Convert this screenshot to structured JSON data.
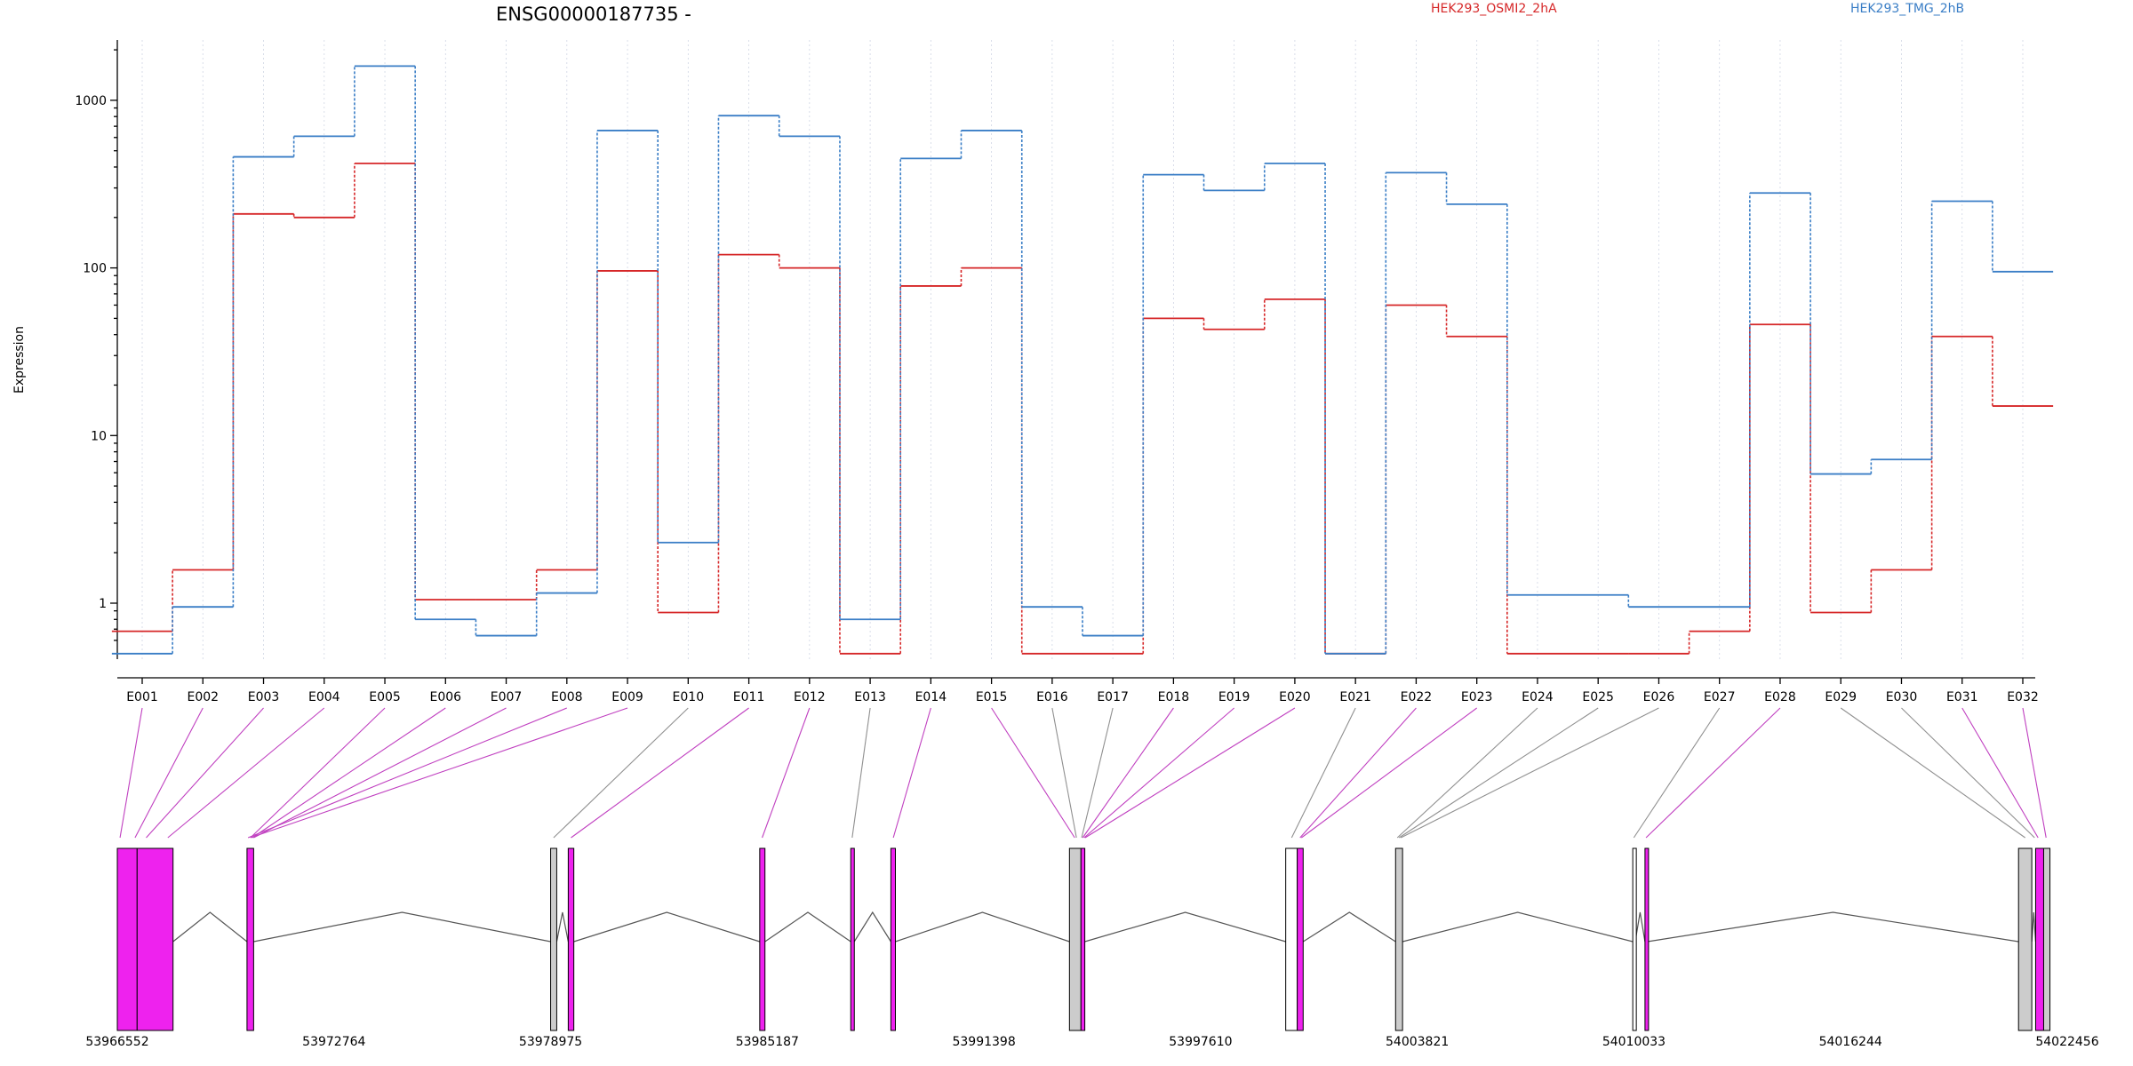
{
  "chart_data": {
    "type": "line",
    "title": "ENSG00000187735 -",
    "ylabel": "Expression",
    "yscale": "log",
    "ylim": [
      0.48,
      2200
    ],
    "yticks": [
      1,
      10,
      100,
      1000
    ],
    "ytick_labels": [
      "1",
      "10",
      "100",
      "1000"
    ],
    "categories": [
      "E001",
      "E002",
      "E003",
      "E004",
      "E005",
      "E006",
      "E007",
      "E008",
      "E009",
      "E010",
      "E011",
      "E012",
      "E013",
      "E014",
      "E015",
      "E016",
      "E017",
      "E018",
      "E019",
      "E020",
      "E021",
      "E022",
      "E023",
      "E024",
      "E025",
      "E026",
      "E027",
      "E028",
      "E029",
      "E030",
      "E031",
      "E032"
    ],
    "series": [
      {
        "name": "HEK293_OSMI2_2hA",
        "color": "#d62728",
        "values": [
          0.68,
          1.58,
          210,
          200,
          420,
          1.05,
          1.05,
          1.58,
          96,
          0.88,
          120,
          100,
          0.5,
          78,
          100,
          0.5,
          0.5,
          50,
          43,
          65,
          0.5,
          60,
          39,
          0.5,
          0.5,
          0.5,
          0.68,
          46,
          0.88,
          1.58,
          39,
          15
        ]
      },
      {
        "name": "HEK293_TMG_2hB",
        "color": "#3a7ec6",
        "values": [
          0.5,
          0.95,
          460,
          610,
          1600,
          0.8,
          0.64,
          1.15,
          660,
          2.3,
          810,
          610,
          0.8,
          450,
          660,
          0.95,
          0.64,
          360,
          290,
          420,
          0.5,
          370,
          240,
          1.12,
          1.12,
          0.95,
          0.95,
          280,
          5.9,
          7.2,
          250,
          95
        ]
      }
    ],
    "exon_highlight": [
      true,
      true,
      true,
      true,
      true,
      true,
      true,
      true,
      true,
      false,
      true,
      true,
      false,
      true,
      true,
      false,
      false,
      true,
      true,
      true,
      false,
      true,
      true,
      false,
      false,
      false,
      false,
      true,
      false,
      false,
      true,
      true
    ],
    "genomic_axis": {
      "ticks": [
        "53966552",
        "53972764",
        "53978975",
        "53985187",
        "53991398",
        "53997610",
        "54003821",
        "54010033",
        "54016244",
        "54022456"
      ],
      "values": [
        53966552,
        53972764,
        53978975,
        53985187,
        53991398,
        53997610,
        54003821,
        54010033,
        54016244,
        54022456
      ]
    },
    "exon_blocks": [
      {
        "start": 53966552,
        "end": 53967120,
        "color": "#ee22ee"
      },
      {
        "start": 53967120,
        "end": 53968150,
        "color": "#ee22ee"
      },
      {
        "start": 53970270,
        "end": 53970460,
        "color": "#ee22ee"
      },
      {
        "start": 53978975,
        "end": 53979150,
        "color": "#cccccc"
      },
      {
        "start": 53979480,
        "end": 53979640,
        "color": "#ee22ee"
      },
      {
        "start": 53984970,
        "end": 53985120,
        "color": "#ee22ee"
      },
      {
        "start": 53987580,
        "end": 53987680,
        "color": "#ee22ee"
      },
      {
        "start": 53988730,
        "end": 53988860,
        "color": "#ee22ee"
      },
      {
        "start": 53993850,
        "end": 53994180,
        "color": "#cccccc"
      },
      {
        "start": 53994180,
        "end": 53994290,
        "color": "#ee22ee"
      },
      {
        "start": 54000050,
        "end": 54000380,
        "color": "#ffffff"
      },
      {
        "start": 54000380,
        "end": 54000550,
        "color": "#ee22ee"
      },
      {
        "start": 54003200,
        "end": 54003400,
        "color": "#cccccc"
      },
      {
        "start": 54010000,
        "end": 54010070,
        "color": "#ffffff"
      },
      {
        "start": 54010350,
        "end": 54010420,
        "color": "#ee22ee"
      },
      {
        "start": 54021060,
        "end": 54021440,
        "color": "#cccccc"
      },
      {
        "start": 54021550,
        "end": 54021780,
        "color": "#ee22ee"
      },
      {
        "start": 54021780,
        "end": 54021960,
        "color": "#cccccc"
      }
    ],
    "exon_map": [
      53966630,
      53967060,
      53967380,
      53968000,
      53970370,
      53970420,
      53970460,
      53970300,
      53970370,
      53979060,
      53979560,
      53985040,
      53987620,
      53988800,
      53994000,
      53994050,
      53994200,
      53994230,
      53994270,
      53994300,
      54000220,
      54000460,
      54000500,
      54003250,
      54003300,
      54003350,
      54010030,
      54010380,
      54021250,
      54021520,
      54021620,
      54021850
    ],
    "introns": [
      {
        "x1": 53968150,
        "x2": 53970270,
        "peak": "high"
      },
      {
        "x1": 53970460,
        "x2": 53978975,
        "peak": "low"
      },
      {
        "x1": 53979150,
        "x2": 53979480,
        "peak": "high"
      },
      {
        "x1": 53979640,
        "x2": 53984970,
        "peak": "low"
      },
      {
        "x1": 53985120,
        "x2": 53987580,
        "peak": "low"
      },
      {
        "x1": 53987680,
        "x2": 53988730,
        "peak": "low"
      },
      {
        "x1": 53988860,
        "x2": 53993850,
        "peak": "low"
      },
      {
        "x1": 53994290,
        "x2": 54000050,
        "peak": "low"
      },
      {
        "x1": 54000550,
        "x2": 54003200,
        "peak": "low"
      },
      {
        "x1": 54003400,
        "x2": 54010000,
        "peak": "low"
      },
      {
        "x1": 54010070,
        "x2": 54010350,
        "peak": "high"
      },
      {
        "x1": 54010420,
        "x2": 54021060,
        "peak": "low"
      },
      {
        "x1": 54021440,
        "x2": 54021550,
        "peak": "high"
      }
    ]
  }
}
